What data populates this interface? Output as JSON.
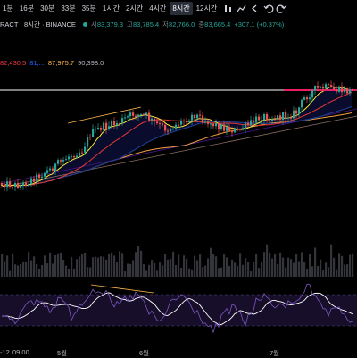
{
  "toolbar": {
    "timeframes": [
      "1분",
      "16분",
      "30분",
      "33분",
      "35분",
      "1시간",
      "2시간",
      "4시간",
      "8시간",
      "12시간"
    ],
    "active_index": 8,
    "icons": [
      "bar-style-icon",
      "indicators-icon",
      "back-icon",
      "undo-icon",
      "redo-icon"
    ]
  },
  "symbol": {
    "name": "RACT · 8시간 · BINANCE",
    "status_color": "#26a69a",
    "ohlc": [
      {
        "key": "시",
        "value": "83,379.3"
      },
      {
        "key": "고",
        "value": "83,785.4"
      },
      {
        "key": "저",
        "value": "82,766.0"
      },
      {
        "key": "종",
        "value": "83,665.4"
      }
    ],
    "change": "+307.1 (+0.37%)"
  },
  "ma_values": [
    {
      "value": "82,430.5",
      "color": "#f23645"
    },
    {
      "value": "81,...",
      "color": "#2962ff"
    },
    {
      "value": "87,975.7",
      "color": "#ffb74d"
    },
    {
      "value": "90,398.0",
      "color": "#b2b5be"
    }
  ],
  "colors": {
    "up": "#26a69a",
    "down": "#ef5350",
    "ma_fast": "#ffeb3b",
    "ma_mid": "#e53935",
    "ma_slow": "#1e3a8a",
    "ma_long": "#f0a040",
    "rsi": "#7e57c2",
    "rsi_ma": "#ffffff",
    "volume": "#5d606b",
    "trendline": "#ffb74d"
  },
  "chart_data": {
    "type": "candlestick",
    "xaxis_labels": [
      "-12",
      "09:00",
      "5월",
      "6월",
      "7월"
    ],
    "candles_summary": "8-hour candles trending up from roughly early April to July",
    "overlays": [
      "moving averages",
      "horizontal level line",
      "trendlines"
    ],
    "sub_panes": [
      "volume",
      "RSI with moving average and band"
    ]
  }
}
